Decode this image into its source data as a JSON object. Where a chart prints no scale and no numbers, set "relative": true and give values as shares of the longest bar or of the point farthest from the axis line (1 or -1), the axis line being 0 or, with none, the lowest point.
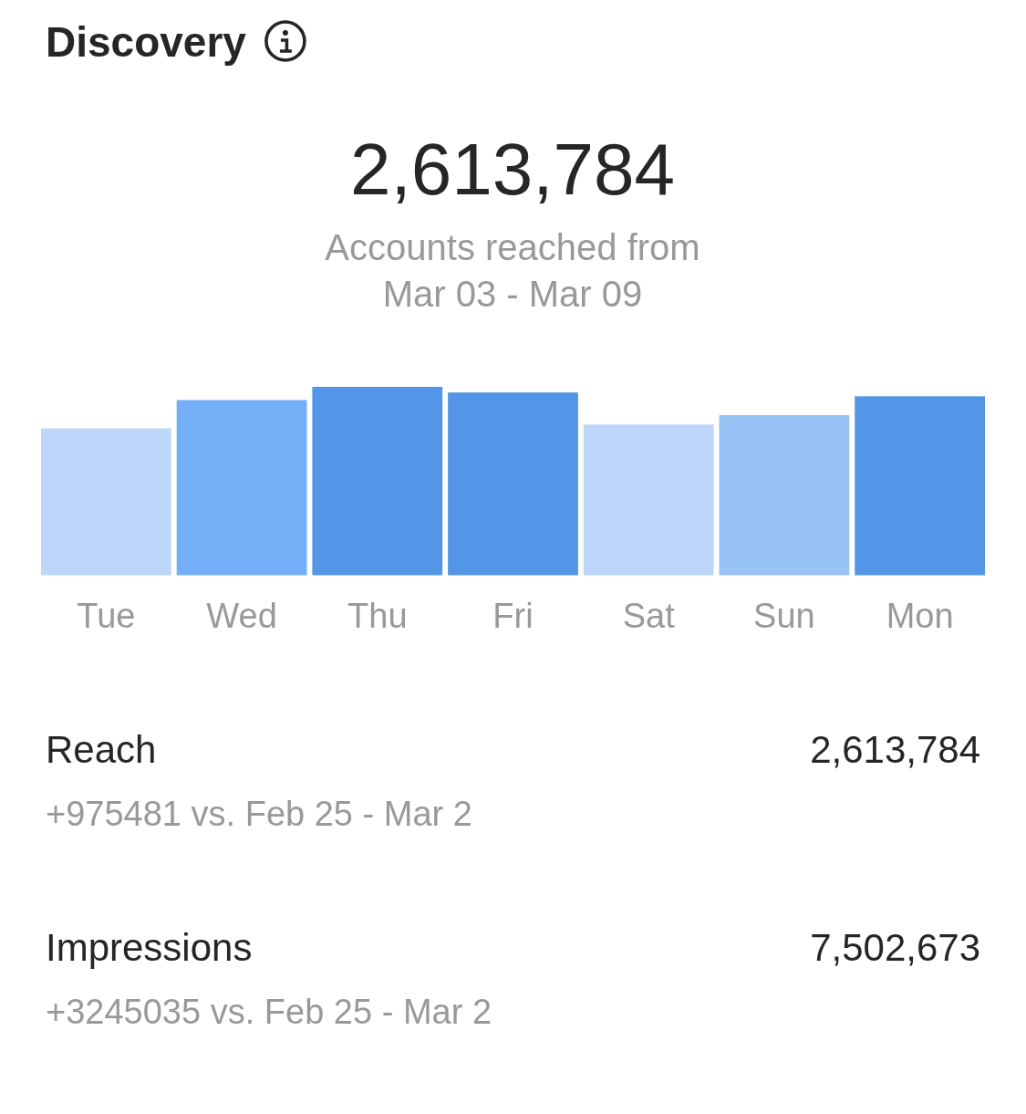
{
  "chart_data": {
    "type": "bar",
    "title": "Discovery",
    "subtitle": "Accounts reached from Mar 03 - Mar 09",
    "categories": [
      "Tue",
      "Wed",
      "Thu",
      "Fri",
      "Sat",
      "Sun",
      "Mon"
    ],
    "values": [
      0.78,
      0.93,
      1,
      0.97,
      0.8,
      0.85,
      0.95
    ],
    "colors": [
      "#bcd7f9",
      "#74aef6",
      "#5395e6",
      "#5395e6",
      "#bcd7f9",
      "#98c3f7",
      "#5395e6"
    ],
    "relative": true,
    "annotations": [
      "2,613,784",
      "Reach",
      "2,613,784",
      "+975481 vs. Feb 25 - Mar 2",
      "Impressions",
      "7,502,673",
      "+3245035 vs. Feb 25 - Mar 2"
    ]
  }
}
